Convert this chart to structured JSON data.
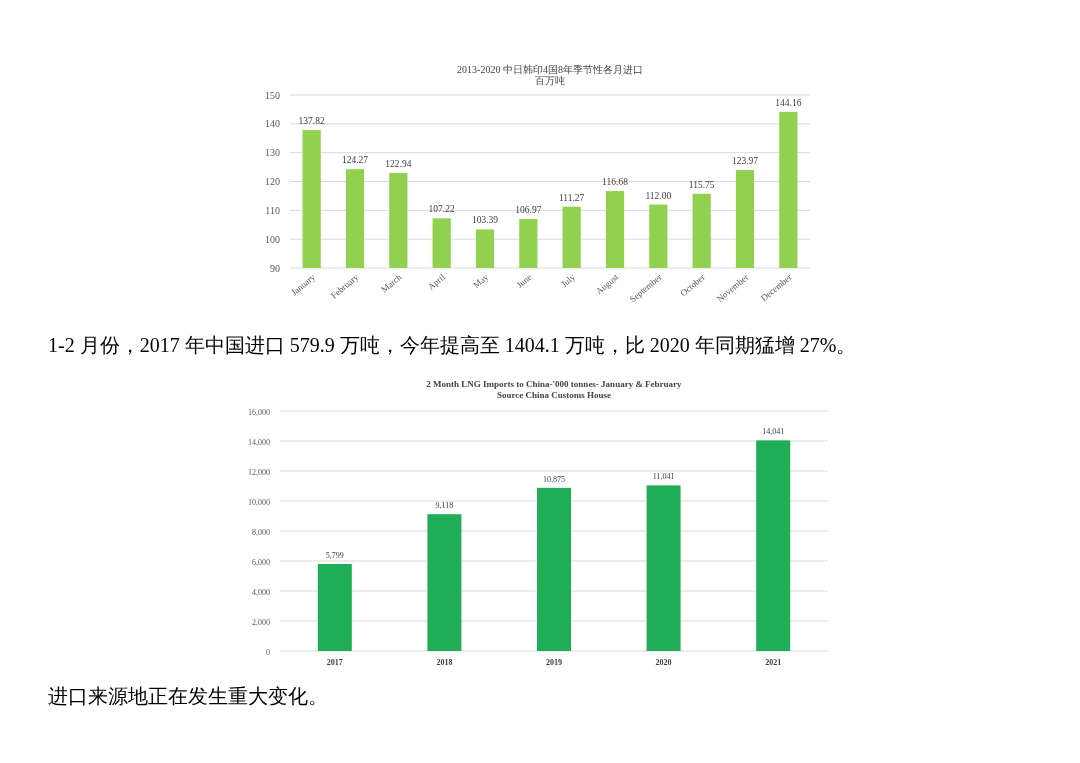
{
  "chart_data": [
    {
      "type": "bar",
      "title": "2013-2020 中日韩印4国8年季节性各月进口",
      "subtitle": "百万吨",
      "categories": [
        "January",
        "February",
        "March",
        "April",
        "May",
        "June",
        "July",
        "August",
        "September",
        "October",
        "November",
        "December"
      ],
      "values": [
        137.82,
        124.27,
        122.94,
        107.22,
        103.39,
        106.97,
        111.27,
        116.68,
        112.0,
        115.75,
        123.97,
        144.16
      ],
      "value_labels": [
        "137.82",
        "124.27",
        "122.94",
        "107.22",
        "103.39",
        "106.97",
        "111.27",
        "116.68",
        "112.00",
        "115.75",
        "123.97",
        "144.16"
      ],
      "color": "#92d050",
      "ylim": [
        90,
        150
      ],
      "yticks": [
        90,
        100,
        110,
        120,
        130,
        140,
        150
      ],
      "grid": "y",
      "annotations": [
        "1-2 月份，2017 年中国进口 579.9 万吨，今年提高至 1404.1 万吨，比 2020 年同期猛增 27%。"
      ]
    },
    {
      "type": "bar",
      "title": "2 Month LNG Imports to China-'000 tonnes- January & February",
      "subtitle": "Source China Customs House",
      "categories": [
        "2017",
        "2018",
        "2019",
        "2020",
        "2021"
      ],
      "values": [
        5799,
        9118,
        10875,
        11041,
        14041
      ],
      "value_labels": [
        "5,799",
        "9,118",
        "10,875",
        "11,041",
        "14,041"
      ],
      "color": "#1fae55",
      "ylim": [
        0,
        16000
      ],
      "yticks": [
        {
          "value": 0,
          "label": "0"
        },
        {
          "value": 2000,
          "label": "2,000"
        },
        {
          "value": 4000,
          "label": "4,000"
        },
        {
          "value": 6000,
          "label": "6,000"
        },
        {
          "value": 8000,
          "label": "8,000"
        },
        {
          "value": 10000,
          "label": "10,000"
        },
        {
          "value": 12000,
          "label": "12,000"
        },
        {
          "value": 14000,
          "label": "14,000"
        },
        {
          "value": 16000,
          "label": "16,000"
        }
      ],
      "grid": "y",
      "annotations": [
        "进口来源地正在发生重大变化。"
      ]
    }
  ]
}
